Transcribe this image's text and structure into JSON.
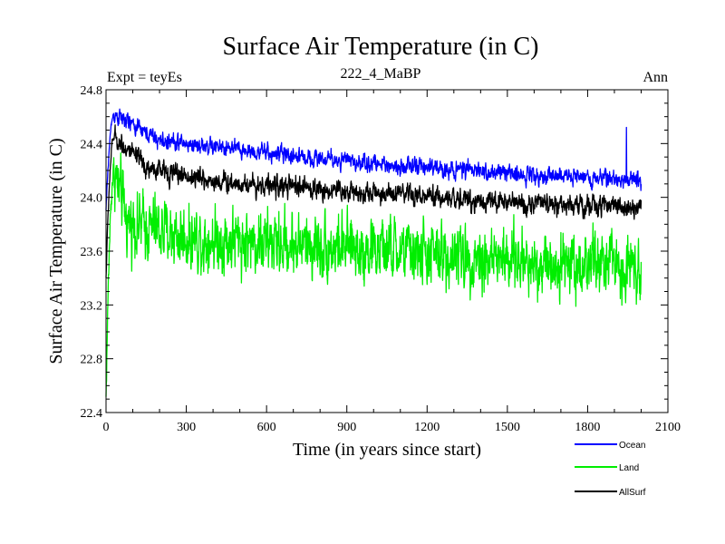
{
  "chart_data": {
    "type": "line",
    "title": "Surface Air Temperature (in C)",
    "subtitle_left": "Expt = teyEs",
    "subtitle_center": "222_4_MaBP",
    "subtitle_right": "Ann",
    "xlabel": "Time (in years since start)",
    "ylabel": "Surface Air Temperature (in C)",
    "xlim": [
      0,
      2100
    ],
    "ylim": [
      22.4,
      24.8
    ],
    "x_ticks": [
      0,
      300,
      600,
      900,
      1200,
      1500,
      1800,
      2100
    ],
    "x_tick_labels": [
      "0",
      "300",
      "600",
      "900",
      "1200",
      "1500",
      "1800",
      "2100"
    ],
    "y_ticks": [
      22.4,
      22.8,
      23.2,
      23.6,
      24.0,
      24.4,
      24.8
    ],
    "y_tick_labels": [
      "22.4",
      "22.8",
      "23.2",
      "23.6",
      "24.0",
      "24.4",
      "24.8"
    ],
    "x_minor_step": 100,
    "y_minor_step": 0.1,
    "n_years": 2000,
    "series": [
      {
        "name": "Ocean",
        "color": "#0000ff",
        "start_value": 23.9,
        "peak_year": 30,
        "peak_value": 24.62,
        "trend": [
          [
            30,
            24.62
          ],
          [
            200,
            24.42
          ],
          [
            600,
            24.33
          ],
          [
            1000,
            24.25
          ],
          [
            1500,
            24.18
          ],
          [
            2000,
            24.13
          ]
        ],
        "noise": 0.045,
        "spike": {
          "year": 1945,
          "value": 24.52
        }
      },
      {
        "name": "Land",
        "color": "#00ee00",
        "start_value": 22.5,
        "peak_year": 30,
        "peak_value": 24.2,
        "trend": [
          [
            30,
            24.2
          ],
          [
            80,
            23.82
          ],
          [
            300,
            23.7
          ],
          [
            800,
            23.64
          ],
          [
            1200,
            23.58
          ],
          [
            1600,
            23.52
          ],
          [
            2000,
            23.5
          ]
        ],
        "noise": 0.17
      },
      {
        "name": "AllSurf",
        "color": "#000000",
        "start_value": 23.4,
        "peak_year": 30,
        "peak_value": 24.45,
        "trend": [
          [
            30,
            24.45
          ],
          [
            150,
            24.22
          ],
          [
            400,
            24.12
          ],
          [
            800,
            24.06
          ],
          [
            1200,
            24.0
          ],
          [
            1600,
            23.95
          ],
          [
            2000,
            23.93
          ]
        ],
        "noise": 0.055
      }
    ],
    "legend_position": "bottom-right"
  }
}
